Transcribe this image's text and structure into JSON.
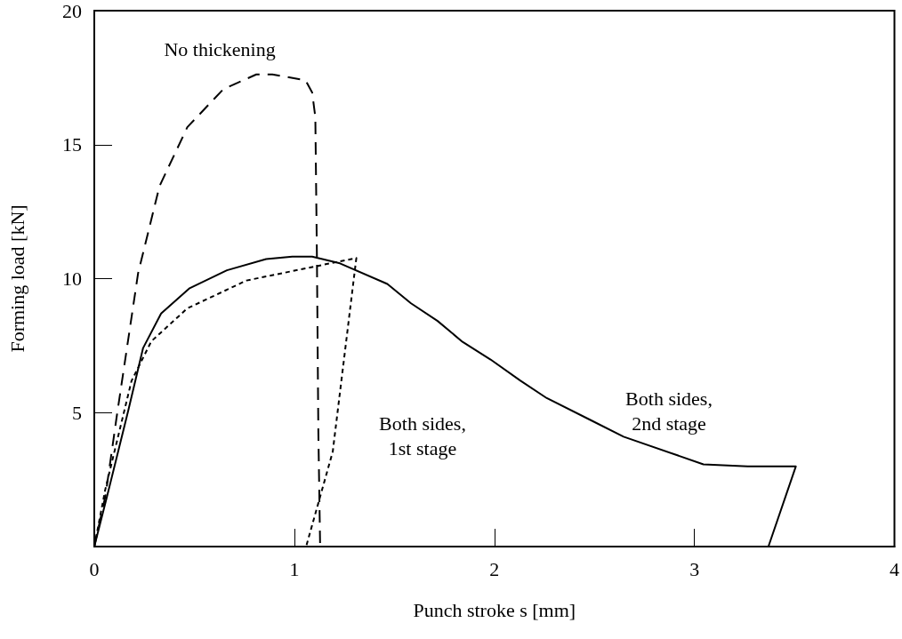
{
  "chart_data": {
    "type": "line",
    "xlabel": "Punch stroke s [mm]",
    "ylabel": "Forming load [kN]",
    "xlim": [
      0,
      4
    ],
    "xticks": [
      0,
      1,
      2,
      3,
      4
    ],
    "ylim": [
      0,
      20
    ],
    "yticks": [
      5,
      10,
      15,
      20
    ],
    "grid": false,
    "marker": "none",
    "series": [
      {
        "name": "No thickening",
        "color": "#000000",
        "line_style": "dashed",
        "x": [
          0,
          0.056,
          0.113,
          0.219,
          0.326,
          0.465,
          0.645,
          0.81,
          0.89,
          1.056,
          1.089,
          1.105,
          1.113,
          1.12,
          1.129
        ],
        "values": [
          0,
          1.9,
          4.9,
          10.2,
          13.45,
          15.65,
          17.07,
          17.62,
          17.62,
          17.4,
          16.95,
          16.03,
          10.75,
          4.34,
          0
        ]
      },
      {
        "name": "Both sides,\n1st stage",
        "color": "#000000",
        "line_style": "dotted",
        "x": [
          0,
          0.055,
          0.186,
          0.285,
          0.465,
          0.761,
          1.31,
          1.192,
          1.059
        ],
        "values": [
          0,
          2.13,
          6.18,
          7.66,
          8.89,
          9.93,
          10.77,
          3.54,
          0
        ]
      },
      {
        "name": "Both sides,\n2nd stage",
        "color": "#000000",
        "line_style": "solid",
        "x": [
          0,
          0.064,
          0.17,
          0.244,
          0.334,
          0.474,
          0.663,
          0.859,
          0.99,
          1.089,
          1.228,
          1.465,
          1.583,
          1.716,
          1.841,
          1.981,
          2.129,
          2.262,
          2.484,
          2.646,
          3.045,
          3.266,
          3.507,
          3.37
        ],
        "values": [
          0,
          1.88,
          5.08,
          7.41,
          8.7,
          9.63,
          10.31,
          10.73,
          10.82,
          10.82,
          10.57,
          9.8,
          9.08,
          8.42,
          7.64,
          6.98,
          6.2,
          5.54,
          4.71,
          4.1,
          3.07,
          2.99,
          2.99,
          0
        ]
      }
    ]
  }
}
